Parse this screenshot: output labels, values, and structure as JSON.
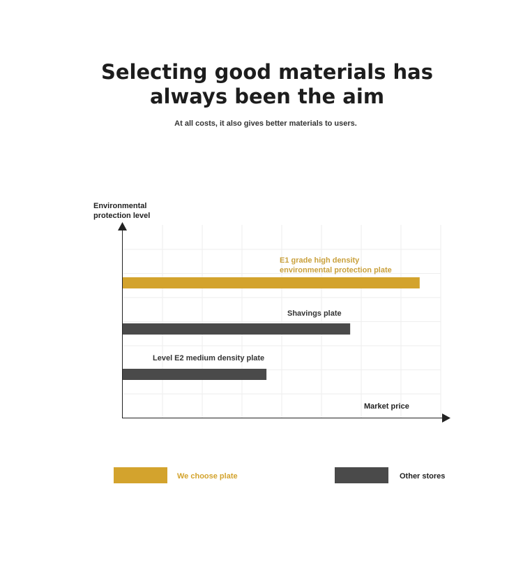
{
  "header": {
    "title": "Selecting good materials has always been the aim",
    "subtitle": "At all costs, it also gives better materials to users."
  },
  "chart_data": {
    "type": "bar",
    "orientation": "horizontal",
    "ylabel": "Environmental protection level",
    "xlabel": "Market price",
    "bars": [
      {
        "label": "E1 grade high density environmental protection plate",
        "value": 0.94,
        "series": "We choose plate"
      },
      {
        "label": "Shavings plate",
        "value": 0.72,
        "series": "Other stores"
      },
      {
        "label": "Level E2 medium density plate",
        "value": 0.455,
        "series": "Other stores"
      }
    ],
    "xlim": [
      0,
      1
    ],
    "grid": true,
    "legend_position": "bottom",
    "series": [
      {
        "name": "We choose plate",
        "color": "#d3a32d"
      },
      {
        "name": "Other stores",
        "color": "#4a4a4a"
      }
    ]
  },
  "colors": {
    "accent": "#d3a32d",
    "dark": "#4a4a4a",
    "label_gold": "#c9a03c"
  }
}
